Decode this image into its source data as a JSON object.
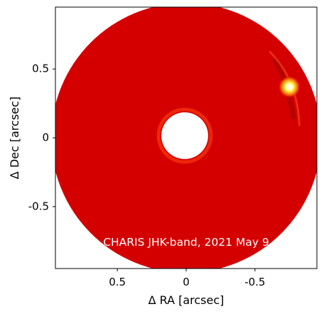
{
  "image": {
    "annotation": "CHARIS JHK-band, 2021 May 9",
    "colors": {
      "background": "#ffffff",
      "disk_red": "#d40000",
      "dark_red": "#a80000",
      "bright_spot": "#ffffc0",
      "frame": "#000000"
    }
  },
  "axes": {
    "xlabel": "Δ RA [arcsec]",
    "ylabel": "Δ Dec [arcsec]",
    "x_range": [
      0.95,
      -0.95
    ],
    "y_range": [
      -0.95,
      0.95
    ],
    "x_ticks": [
      {
        "value": 0.5,
        "label": "0.5"
      },
      {
        "value": 0.0,
        "label": "0"
      },
      {
        "value": -0.5,
        "label": "-0.5"
      }
    ],
    "y_ticks": [
      {
        "value": 0.5,
        "label": "0.5"
      },
      {
        "value": 0.0,
        "label": "0"
      },
      {
        "value": -0.5,
        "label": "-0.5"
      }
    ]
  },
  "features": {
    "mask_radius_arcsec": 0.17,
    "field_radius_arcsec": 0.98,
    "companion": {
      "ra": -0.75,
      "dec": 0.37
    }
  }
}
